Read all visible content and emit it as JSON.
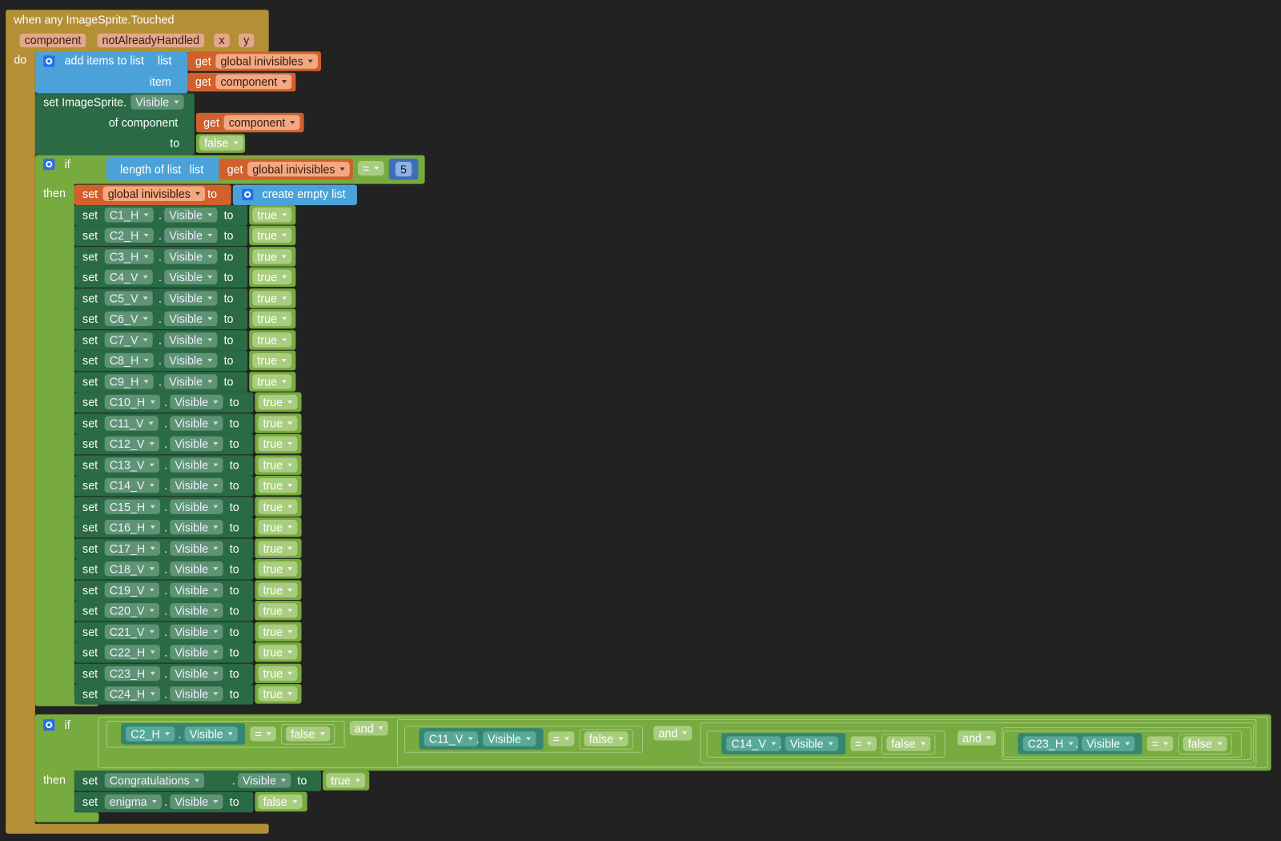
{
  "event": {
    "title": "when any ImageSprite.Touched",
    "params": [
      "component",
      "notAlreadyHandled",
      "x",
      "y"
    ],
    "do": "do"
  },
  "add_items": {
    "title": "add items to list",
    "list_socket": "list",
    "list_get": "get",
    "list_var": "global inivisibles",
    "item_socket": "item",
    "item_get": "get",
    "item_var": "component"
  },
  "set_generic": {
    "set": "set ImageSprite.",
    "prop": "Visible",
    "of_component": "of component",
    "get": "get",
    "var": "component",
    "to": "to",
    "value": "false"
  },
  "if1": {
    "if": "if",
    "length": "length of list",
    "list": "list",
    "get": "get",
    "var": "global inivisibles",
    "op": "=",
    "number": 5,
    "then": "then",
    "reset": {
      "set": "set",
      "var": "global inivisibles",
      "to": "to",
      "create": "create empty list"
    },
    "rows": [
      {
        "set": "set",
        "component": "C1_H",
        "dot": ".",
        "prop": "Visible",
        "to": "to",
        "value": "true"
      },
      {
        "set": "set",
        "component": "C2_H",
        "dot": ".",
        "prop": "Visible",
        "to": "to",
        "value": "true"
      },
      {
        "set": "set",
        "component": "C3_H",
        "dot": ".",
        "prop": "Visible",
        "to": "to",
        "value": "true"
      },
      {
        "set": "set",
        "component": "C4_V",
        "dot": ".",
        "prop": "Visible",
        "to": "to",
        "value": "true"
      },
      {
        "set": "set",
        "component": "C5_V",
        "dot": ".",
        "prop": "Visible",
        "to": "to",
        "value": "true"
      },
      {
        "set": "set",
        "component": "C6_V",
        "dot": ".",
        "prop": "Visible",
        "to": "to",
        "value": "true"
      },
      {
        "set": "set",
        "component": "C7_V",
        "dot": ".",
        "prop": "Visible",
        "to": "to",
        "value": "true"
      },
      {
        "set": "set",
        "component": "C8_H",
        "dot": ".",
        "prop": "Visible",
        "to": "to",
        "value": "true"
      },
      {
        "set": "set",
        "component": "C9_H",
        "dot": ".",
        "prop": "Visible",
        "to": "to",
        "value": "true"
      },
      {
        "set": "set",
        "component": "C10_H",
        "dot": ".",
        "prop": "Visible",
        "to": "to",
        "value": "true"
      },
      {
        "set": "set",
        "component": "C11_V",
        "dot": ".",
        "prop": "Visible",
        "to": "to",
        "value": "true"
      },
      {
        "set": "set",
        "component": "C12_V",
        "dot": ".",
        "prop": "Visible",
        "to": "to",
        "value": "true"
      },
      {
        "set": "set",
        "component": "C13_V",
        "dot": ".",
        "prop": "Visible",
        "to": "to",
        "value": "true"
      },
      {
        "set": "set",
        "component": "C14_V",
        "dot": ".",
        "prop": "Visible",
        "to": "to",
        "value": "true"
      },
      {
        "set": "set",
        "component": "C15_H",
        "dot": ".",
        "prop": "Visible",
        "to": "to",
        "value": "true"
      },
      {
        "set": "set",
        "component": "C16_H",
        "dot": ".",
        "prop": "Visible",
        "to": "to",
        "value": "true"
      },
      {
        "set": "set",
        "component": "C17_H",
        "dot": ".",
        "prop": "Visible",
        "to": "to",
        "value": "true"
      },
      {
        "set": "set",
        "component": "C18_V",
        "dot": ".",
        "prop": "Visible",
        "to": "to",
        "value": "true"
      },
      {
        "set": "set",
        "component": "C19_V",
        "dot": ".",
        "prop": "Visible",
        "to": "to",
        "value": "true"
      },
      {
        "set": "set",
        "component": "C20_V",
        "dot": ".",
        "prop": "Visible",
        "to": "to",
        "value": "true"
      },
      {
        "set": "set",
        "component": "C21_V",
        "dot": ".",
        "prop": "Visible",
        "to": "to",
        "value": "true"
      },
      {
        "set": "set",
        "component": "C22_H",
        "dot": ".",
        "prop": "Visible",
        "to": "to",
        "value": "true"
      },
      {
        "set": "set",
        "component": "C23_H",
        "dot": ".",
        "prop": "Visible",
        "to": "to",
        "value": "true"
      },
      {
        "set": "set",
        "component": "C24_H",
        "dot": ".",
        "prop": "Visible",
        "to": "to",
        "value": "true"
      }
    ]
  },
  "if2": {
    "if": "if",
    "conditions": [
      {
        "component": "C2_H",
        "dot": ".",
        "prop": "Visible",
        "op": "=",
        "value": "false"
      },
      {
        "component": "C11_V",
        "dot": ".",
        "prop": "Visible",
        "op": "=",
        "value": "false"
      },
      {
        "component": "C14_V",
        "dot": ".",
        "prop": "Visible",
        "op": "=",
        "value": "false"
      },
      {
        "component": "C23_H",
        "dot": ".",
        "prop": "Visible",
        "op": "=",
        "value": "false"
      }
    ],
    "and": [
      "and",
      "and",
      "and"
    ],
    "then": "then",
    "rows": [
      {
        "set": "set",
        "component": "Congratulations",
        "dot": ".",
        "prop": "Visible",
        "to": "to",
        "value": "true"
      },
      {
        "set": "set",
        "component": "enigma",
        "dot": ".",
        "prop": "Visible",
        "to": "to",
        "value": "false"
      }
    ]
  }
}
